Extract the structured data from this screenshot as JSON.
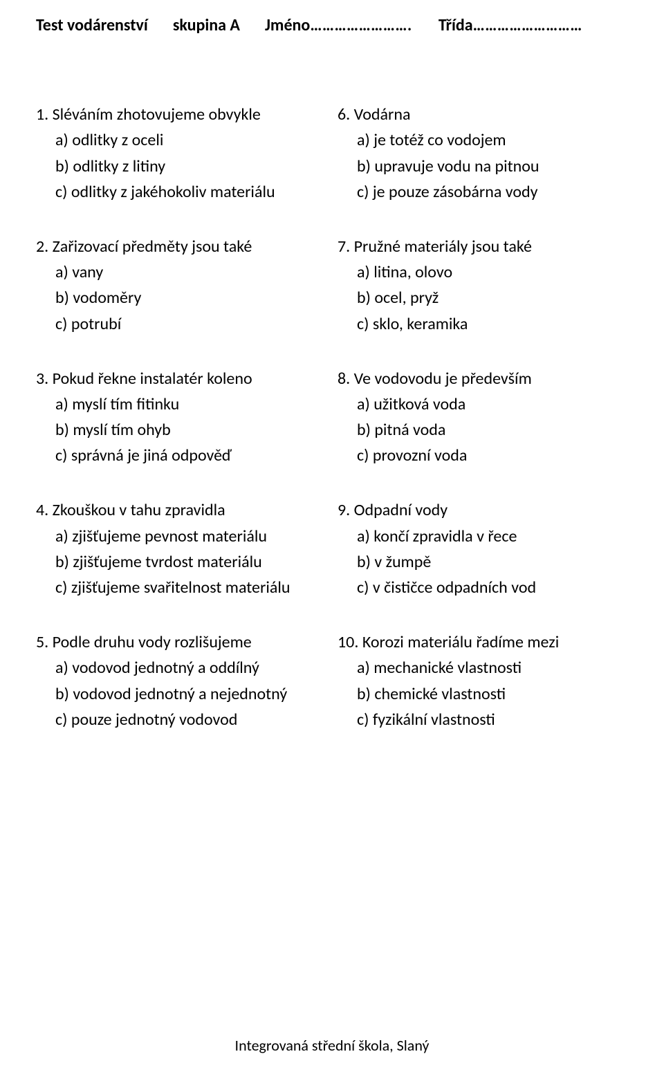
{
  "header": {
    "title": "Test  vodárenství",
    "group": "skupina A",
    "name_label": "Jméno",
    "name_dots": "…………………….",
    "class_label": "Třída",
    "class_dots": "………………………"
  },
  "left": [
    {
      "q": "1. Sléváním zhotovujeme obvykle",
      "opts": [
        "a) odlitky z oceli",
        "b) odlitky z litiny",
        "c) odlitky z jakéhokoliv materiálu"
      ]
    },
    {
      "q": "2. Zařizovací předměty jsou také",
      "opts": [
        "a) vany",
        "b) vodoměry",
        "c) potrubí"
      ]
    },
    {
      "q": "3. Pokud řekne instalatér koleno",
      "opts": [
        "a) myslí tím fitinku",
        "b) myslí tím ohyb",
        "c) správná je jiná odpověď"
      ]
    },
    {
      "q": "4. Zkouškou v tahu zpravidla",
      "opts": [
        "a) zjišťujeme pevnost materiálu",
        "b) zjišťujeme tvrdost materiálu",
        "c) zjišťujeme svařitelnost materiálu"
      ]
    },
    {
      "q": "5. Podle druhu vody rozlišujeme",
      "opts": [
        "a) vodovod jednotný a oddílný",
        "b) vodovod jednotný a nejednotný",
        "c) pouze jednotný vodovod"
      ]
    }
  ],
  "right": [
    {
      "q": "6. Vodárna",
      "opts": [
        "a) je totéž co vodojem",
        "b) upravuje vodu na pitnou",
        "c) je pouze zásobárna vody"
      ]
    },
    {
      "q": "7. Pružné materiály jsou také",
      "opts": [
        "a) litina, olovo",
        "b) ocel, pryž",
        "c) sklo, keramika"
      ]
    },
    {
      "q": "8. Ve vodovodu je především",
      "opts": [
        "a) užitková voda",
        "b) pitná voda",
        "c) provozní voda"
      ]
    },
    {
      "q": "9. Odpadní vody",
      "opts": [
        "a) končí zpravidla v řece",
        "b) v žumpě",
        "c) v čističce odpadních vod"
      ]
    },
    {
      "q": "10. Korozi materiálu řadíme mezi",
      "opts": [
        "a) mechanické vlastnosti",
        "b) chemické vlastnosti",
        "c) fyzikální vlastnosti"
      ]
    }
  ],
  "footer": "Integrovaná střední škola, Slaný"
}
